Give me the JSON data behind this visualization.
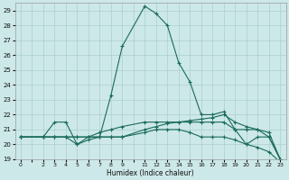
{
  "xlabel": "Humidex (Indice chaleur)",
  "bg_color": "#cde8e8",
  "grid_color": "#aacfcf",
  "line_color": "#1a6b5a",
  "ylim": [
    19,
    29.5
  ],
  "yticks": [
    19,
    20,
    21,
    22,
    23,
    24,
    25,
    26,
    27,
    28,
    29
  ],
  "x_categories": [
    0,
    1,
    2,
    3,
    4,
    5,
    6,
    7,
    8,
    9,
    10,
    11,
    12,
    13,
    14,
    15,
    16,
    17,
    18,
    19,
    20,
    21,
    22,
    23
  ],
  "xtick_labels": [
    "0",
    "",
    "2",
    "3",
    "4",
    "5",
    "6",
    "7",
    "8",
    "9",
    "",
    "11",
    "12",
    "13",
    "14",
    "15",
    "16",
    "17",
    "18",
    "19",
    "20",
    "21",
    "22",
    "23"
  ],
  "series": [
    {
      "x_idx": [
        0,
        2,
        3,
        4,
        5,
        6,
        7,
        8,
        9,
        11,
        12,
        13,
        14,
        15,
        16,
        17,
        18,
        19,
        20,
        21,
        22,
        23
      ],
      "y": [
        20.5,
        20.5,
        21.5,
        21.5,
        20.0,
        20.5,
        20.5,
        23.3,
        26.6,
        29.3,
        28.8,
        28.0,
        25.5,
        24.2,
        22.0,
        22.0,
        22.2,
        21.0,
        20.0,
        20.5,
        20.5,
        19.0
      ]
    },
    {
      "x_idx": [
        0,
        2,
        3,
        4,
        5,
        6,
        7,
        8,
        9,
        11,
        12,
        13,
        14,
        15,
        16,
        17,
        18,
        19,
        20,
        21,
        22,
        23
      ],
      "y": [
        20.5,
        20.5,
        20.5,
        20.5,
        20.5,
        20.5,
        20.5,
        20.5,
        20.5,
        21.0,
        21.2,
        21.4,
        21.5,
        21.6,
        21.7,
        21.8,
        22.0,
        21.5,
        21.2,
        21.0,
        20.5,
        19.0
      ]
    },
    {
      "x_idx": [
        0,
        2,
        3,
        4,
        5,
        6,
        7,
        8,
        9,
        11,
        12,
        13,
        14,
        15,
        16,
        17,
        18,
        19,
        20,
        21,
        22,
        23
      ],
      "y": [
        20.5,
        20.5,
        20.5,
        20.5,
        20.5,
        20.5,
        20.8,
        21.0,
        21.2,
        21.5,
        21.5,
        21.5,
        21.5,
        21.5,
        21.5,
        21.5,
        21.5,
        21.0,
        21.0,
        21.0,
        20.8,
        19.0
      ]
    },
    {
      "x_idx": [
        0,
        2,
        3,
        4,
        5,
        6,
        7,
        8,
        9,
        11,
        12,
        13,
        14,
        15,
        16,
        17,
        18,
        19,
        20,
        21,
        22,
        23
      ],
      "y": [
        20.5,
        20.5,
        20.5,
        20.5,
        20.0,
        20.3,
        20.5,
        20.5,
        20.5,
        20.8,
        21.0,
        21.0,
        21.0,
        20.8,
        20.5,
        20.5,
        20.5,
        20.3,
        20.0,
        19.8,
        19.5,
        18.8
      ]
    }
  ]
}
